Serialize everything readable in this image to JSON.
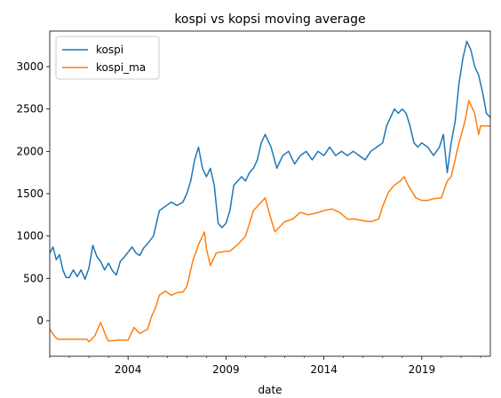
{
  "chart_data": {
    "type": "line",
    "title": "kospi vs kopsi moving average",
    "xlabel": "date",
    "ylabel": "",
    "xlim": [
      2000.0,
      2022.5
    ],
    "ylim": [
      -420,
      3420
    ],
    "x_ticks": [
      2004,
      2009,
      2014,
      2019
    ],
    "y_ticks": [
      0,
      500,
      1000,
      1500,
      2000,
      2500,
      3000
    ],
    "legend_position": "top-left",
    "grid": false,
    "series": [
      {
        "name": "kospi",
        "color": "#1f77b4",
        "x": [
          2000.0,
          2000.17,
          2000.33,
          2000.5,
          2000.67,
          2000.83,
          2001.0,
          2001.2,
          2001.4,
          2001.6,
          2001.8,
          2002.0,
          2002.2,
          2002.4,
          2002.6,
          2002.8,
          2003.0,
          2003.2,
          2003.4,
          2003.6,
          2003.8,
          2004.0,
          2004.2,
          2004.4,
          2004.6,
          2004.8,
          2005.0,
          2005.3,
          2005.6,
          2005.9,
          2006.2,
          2006.5,
          2006.8,
          2007.0,
          2007.2,
          2007.4,
          2007.6,
          2007.8,
          2008.0,
          2008.2,
          2008.4,
          2008.6,
          2008.8,
          2009.0,
          2009.2,
          2009.4,
          2009.6,
          2009.8,
          2010.0,
          2010.2,
          2010.4,
          2010.6,
          2010.8,
          2011.0,
          2011.3,
          2011.6,
          2011.9,
          2012.2,
          2012.5,
          2012.8,
          2013.1,
          2013.4,
          2013.7,
          2014.0,
          2014.3,
          2014.6,
          2014.9,
          2015.2,
          2015.5,
          2015.8,
          2016.1,
          2016.4,
          2016.7,
          2017.0,
          2017.2,
          2017.4,
          2017.6,
          2017.8,
          2018.0,
          2018.2,
          2018.4,
          2018.6,
          2018.8,
          2019.0,
          2019.3,
          2019.6,
          2019.9,
          2020.1,
          2020.3,
          2020.5,
          2020.7,
          2020.9,
          2021.1,
          2021.3,
          2021.5,
          2021.7,
          2021.9,
          2022.1,
          2022.3,
          2022.5
        ],
        "y": [
          800,
          870,
          720,
          780,
          600,
          510,
          510,
          600,
          520,
          600,
          490,
          620,
          890,
          760,
          700,
          600,
          680,
          590,
          540,
          700,
          750,
          810,
          870,
          800,
          770,
          860,
          910,
          1000,
          1300,
          1350,
          1400,
          1360,
          1400,
          1500,
          1650,
          1900,
          2050,
          1800,
          1700,
          1800,
          1600,
          1150,
          1100,
          1150,
          1300,
          1600,
          1650,
          1700,
          1650,
          1750,
          1800,
          1900,
          2100,
          2200,
          2050,
          1800,
          1950,
          2000,
          1850,
          1950,
          2000,
          1900,
          2000,
          1950,
          2050,
          1950,
          2000,
          1950,
          2000,
          1950,
          1900,
          2000,
          2050,
          2100,
          2300,
          2400,
          2500,
          2450,
          2500,
          2450,
          2300,
          2100,
          2050,
          2100,
          2050,
          1950,
          2050,
          2200,
          1750,
          2100,
          2350,
          2800,
          3100,
          3300,
          3200,
          3000,
          2900,
          2700,
          2450,
          2400
        ]
      },
      {
        "name": "kospi_ma",
        "color": "#ff7f0e",
        "x": [
          2000.0,
          2000.2,
          2000.4,
          2001.0,
          2001.5,
          2001.9,
          2002.0,
          2002.3,
          2002.6,
          2002.9,
          2003.0,
          2003.5,
          2004.0,
          2004.3,
          2004.6,
          2005.0,
          2005.2,
          2005.4,
          2005.6,
          2005.9,
          2006.2,
          2006.5,
          2006.8,
          2007.0,
          2007.3,
          2007.6,
          2007.9,
          2008.0,
          2008.2,
          2008.5,
          2009.0,
          2009.2,
          2009.6,
          2010.0,
          2010.4,
          2010.8,
          2011.0,
          2011.3,
          2011.5,
          2012.0,
          2012.4,
          2012.8,
          2013.2,
          2013.6,
          2014.0,
          2014.4,
          2014.8,
          2015.2,
          2015.6,
          2016.0,
          2016.4,
          2016.8,
          2017.0,
          2017.3,
          2017.6,
          2017.9,
          2018.1,
          2018.3,
          2018.7,
          2019.0,
          2019.3,
          2019.6,
          2020.0,
          2020.3,
          2020.5,
          2020.9,
          2021.2,
          2021.4,
          2021.7,
          2021.9,
          2022.0,
          2022.3,
          2022.5
        ],
        "y": [
          -100,
          -170,
          -220,
          -220,
          -220,
          -220,
          -250,
          -180,
          -20,
          -200,
          -240,
          -230,
          -230,
          -80,
          -150,
          -100,
          50,
          150,
          300,
          350,
          300,
          330,
          340,
          400,
          700,
          900,
          1050,
          850,
          650,
          800,
          820,
          820,
          900,
          1000,
          1300,
          1400,
          1450,
          1200,
          1050,
          1170,
          1200,
          1280,
          1250,
          1270,
          1300,
          1320,
          1280,
          1200,
          1200,
          1180,
          1170,
          1200,
          1350,
          1520,
          1600,
          1650,
          1700,
          1600,
          1450,
          1420,
          1420,
          1440,
          1450,
          1650,
          1700,
          2100,
          2350,
          2600,
          2450,
          2200,
          2300,
          2300,
          2300
        ]
      }
    ]
  }
}
